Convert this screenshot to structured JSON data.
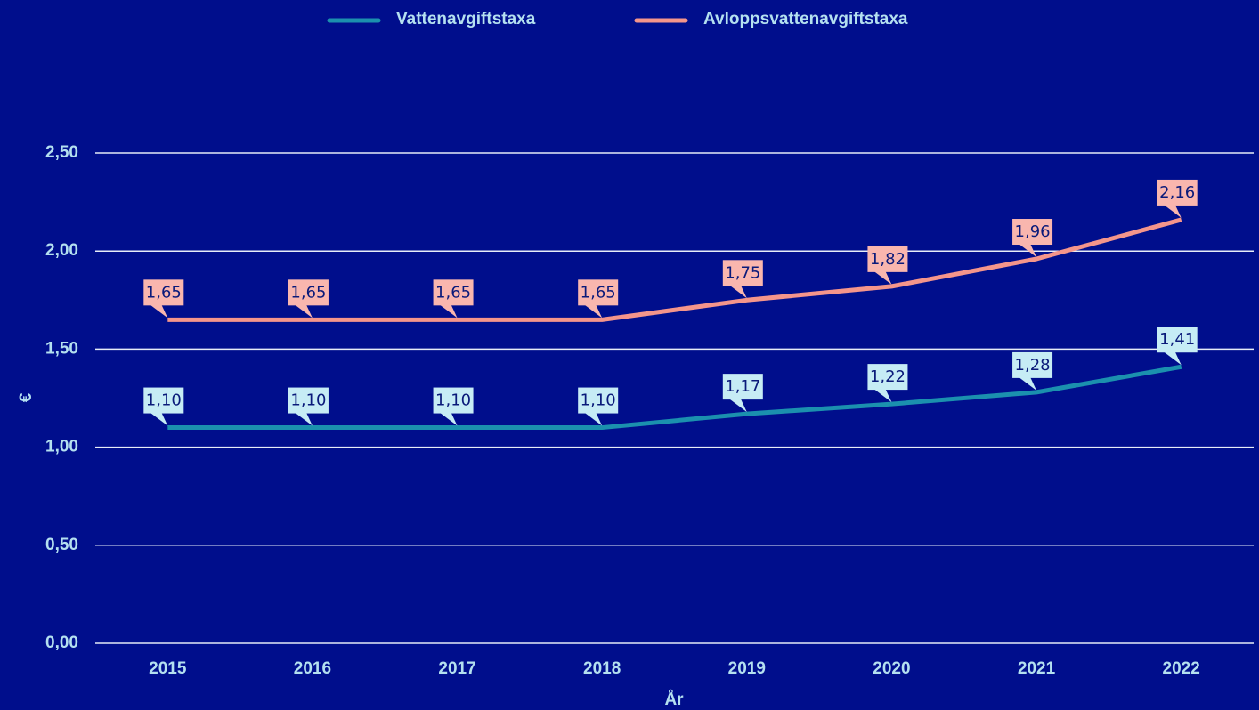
{
  "chart_data": {
    "type": "line",
    "categories": [
      "2015",
      "2016",
      "2017",
      "2018",
      "2019",
      "2020",
      "2021",
      "2022"
    ],
    "series": [
      {
        "name": "Vattenavgiftstaxa",
        "color": "#1b90ae",
        "label_color": "#c6ecf5",
        "values": [
          1.1,
          1.1,
          1.1,
          1.1,
          1.17,
          1.22,
          1.28,
          1.41
        ],
        "value_labels": [
          "1,10",
          "1,10",
          "1,10",
          "1,10",
          "1,17",
          "1,22",
          "1,28",
          "1,41"
        ]
      },
      {
        "name": "Avloppsvattenavgiftstaxa",
        "color": "#f4958b",
        "label_color": "#f9b6ae",
        "values": [
          1.65,
          1.65,
          1.65,
          1.65,
          1.75,
          1.82,
          1.96,
          2.16
        ],
        "value_labels": [
          "1,65",
          "1,65",
          "1,65",
          "1,65",
          "1,75",
          "1,82",
          "1,96",
          "2,16"
        ]
      }
    ],
    "ylim": [
      0,
      2.5
    ],
    "yticks": [
      {
        "value": 0,
        "label": "0,00"
      },
      {
        "value": 0.5,
        "label": "0,50"
      },
      {
        "value": 1,
        "label": "1,00"
      },
      {
        "value": 1.5,
        "label": "1,50"
      },
      {
        "value": 2,
        "label": "2,00"
      },
      {
        "value": 2.5,
        "label": "2,50"
      }
    ],
    "y_label": "€",
    "x_label": "År",
    "grid": true,
    "legend": "top"
  }
}
